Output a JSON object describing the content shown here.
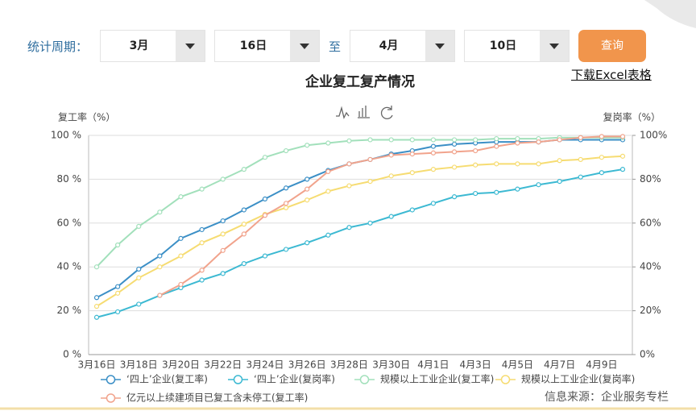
{
  "filter": {
    "label": "统计周期：",
    "month_from": "3月",
    "day_from": "16日",
    "separator": "至",
    "month_to": "4月",
    "day_to": "10日",
    "button": "查询",
    "download": "下载Excel表格"
  },
  "chart_data": {
    "type": "line",
    "title": "企业复工复产情况",
    "y_label": "复工率（%）",
    "y2_label": "复岗率（%）",
    "categories": [
      "3月16日",
      null,
      "3月18日",
      null,
      "3月20日",
      null,
      "3月22日",
      null,
      "3月24日",
      null,
      "3月26日",
      null,
      "3月28日",
      null,
      "3月30日",
      null,
      "4月1日",
      null,
      "4月3日",
      null,
      "4月5日",
      null,
      "4月7日",
      null,
      "4月9日",
      null
    ],
    "ylim": [
      0,
      100
    ],
    "yticks": [
      {
        "value": 0,
        "label": "0 %"
      },
      {
        "value": 20,
        "label": "20 %"
      },
      {
        "value": 40,
        "label": "40 %"
      },
      {
        "value": 60,
        "label": "60 %"
      },
      {
        "value": 80,
        "label": "80 %"
      },
      {
        "value": 100,
        "label": "100 %"
      }
    ],
    "y2lim": [
      0,
      100
    ],
    "y2ticks": [
      {
        "value": 0,
        "label": "0%"
      },
      {
        "value": 20,
        "label": "20%"
      },
      {
        "value": 40,
        "label": "40%"
      },
      {
        "value": 60,
        "label": "60%"
      },
      {
        "value": 80,
        "label": "80%"
      },
      {
        "value": 100,
        "label": "100%"
      }
    ],
    "grid": true,
    "series": [
      {
        "name": "‘四上’企业(复工率)",
        "color": "#3b8fc6",
        "values": [
          26,
          31,
          39,
          45,
          53,
          57,
          61,
          66,
          71,
          76,
          80,
          84,
          87,
          89,
          91.5,
          93,
          95,
          96,
          96.5,
          97,
          97,
          97,
          98,
          98,
          98,
          98
        ]
      },
      {
        "name": "‘四上’企业(复岗率)",
        "color": "#3cb9d2",
        "axis": "y2",
        "values": [
          17,
          19.5,
          23,
          27,
          30.5,
          34,
          37,
          41.5,
          45,
          48,
          51,
          54.5,
          58,
          60,
          63,
          66,
          69,
          72,
          73.5,
          74,
          75.5,
          77.5,
          79,
          81,
          83,
          84.5
        ]
      },
      {
        "name": "规模以上工业企业(复工率)",
        "color": "#a2e0bb",
        "values": [
          40,
          50,
          58.5,
          65,
          72,
          75.5,
          80,
          84.5,
          90,
          93,
          95.5,
          96.5,
          97.5,
          98,
          98,
          98,
          98,
          98,
          98,
          98.5,
          98.5,
          98.5,
          99,
          99,
          99,
          99
        ]
      },
      {
        "name": "规模以上工业企业(复岗率)",
        "color": "#f6dc72",
        "axis": "y2",
        "values": [
          22,
          28,
          35,
          40,
          45,
          51,
          55,
          59.5,
          64,
          67,
          70.5,
          74.5,
          77,
          79,
          81.5,
          83,
          84.5,
          85.5,
          86.5,
          87,
          87,
          87,
          88.5,
          89,
          90,
          90.5
        ]
      },
      {
        "name": "亿元以上续建项目已复工含未停工(复工率)",
        "color": "#f1a38c",
        "values": [
          null,
          null,
          null,
          27,
          32,
          38.5,
          47.5,
          55,
          63.5,
          69,
          75.5,
          83.5,
          87,
          89,
          91,
          91.5,
          92,
          92.5,
          93,
          95,
          96.5,
          97,
          98,
          99,
          99.5,
          99.5
        ]
      }
    ]
  },
  "source": "信息来源：企业服务专栏"
}
